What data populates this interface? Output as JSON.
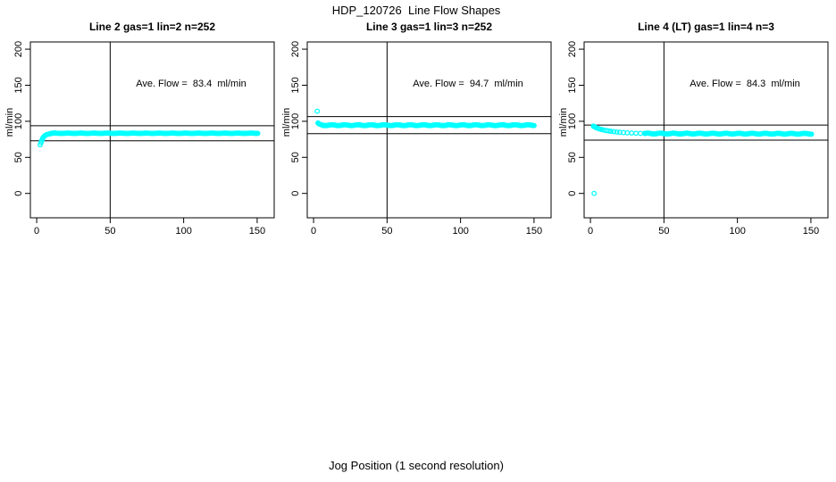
{
  "figure": {
    "title": "HDP_120726  Line Flow Shapes",
    "xlabel": "Jog Position (1 second resolution)",
    "background": "#ffffff"
  },
  "chart_data": {
    "type": "scatter",
    "point_color": "#00ffff",
    "axis_color": "#000000",
    "ylabel": "ml/min",
    "x_ticks": [
      0,
      50,
      100,
      150
    ],
    "y_ticks": [
      0,
      50,
      100,
      150,
      200
    ],
    "xlim": [
      -4.3,
      161.6
    ],
    "ylim": [
      -33.8,
      210
    ],
    "vline_x": 50,
    "grid": false,
    "marker": "open-circle",
    "panels": [
      {
        "title": "Line 2 gas=1 lin=2 n=252",
        "annotation": "Ave. Flow =  83.4  ml/min",
        "ave_flow_ml_min": 83.4,
        "n": 252,
        "hlines": [
          93.8,
          73.0
        ],
        "outlier_points": [
          [
            2.4,
            67.5
          ]
        ],
        "lead_points": [
          [
            3,
            70.5
          ],
          [
            3.4,
            73
          ],
          [
            3.8,
            75
          ],
          [
            4.2,
            76.8
          ],
          [
            4.7,
            78.2
          ],
          [
            5.2,
            79.4
          ],
          [
            5.8,
            80.4
          ],
          [
            6.5,
            81.2
          ],
          [
            7.3,
            81.8
          ],
          [
            8.2,
            82.3
          ],
          [
            9.1,
            82.7
          ],
          [
            10,
            83
          ]
        ],
        "band": {
          "x_from": 10,
          "x_to": 150.5,
          "step": 0.6,
          "y_from": 83.4,
          "y_to": 83.4,
          "jitter": 0.22
        }
      },
      {
        "title": "Line 3 gas=1 lin=3 n=252",
        "annotation": "Ave. Flow =  94.7  ml/min",
        "ave_flow_ml_min": 94.7,
        "n": 252,
        "hlines": [
          106.5,
          82.9
        ],
        "outlier_points": [
          [
            2.5,
            114
          ]
        ],
        "lead_points": [
          [
            3,
            97.8
          ],
          [
            3.5,
            96.7
          ],
          [
            4,
            96.1
          ],
          [
            4.6,
            95.6
          ],
          [
            5.3,
            95.2
          ],
          [
            6,
            94.9
          ]
        ],
        "band": {
          "x_from": 6,
          "x_to": 150.5,
          "step": 0.6,
          "y_from": 94.6,
          "y_to": 94.6,
          "jitter": 0.6
        }
      },
      {
        "title": "Line 4 (LT) gas=1 lin=4 n=3",
        "annotation": "Ave. Flow =  84.3  ml/min",
        "ave_flow_ml_min": 84.3,
        "n": 3,
        "hlines": [
          94.8,
          73.8
        ],
        "outlier_points": [
          [
            2.5,
            0
          ]
        ],
        "lead_points": [
          [
            2,
            93.2
          ],
          [
            2.6,
            92.5
          ],
          [
            3.2,
            91.9
          ],
          [
            3.9,
            91.2
          ],
          [
            4.7,
            90.5
          ],
          [
            5.5,
            89.9
          ],
          [
            6.4,
            89.3
          ],
          [
            7.4,
            88.7
          ],
          [
            8.5,
            88.2
          ],
          [
            9.7,
            87.6
          ],
          [
            11,
            87.1
          ],
          [
            12.5,
            86.6
          ],
          [
            14,
            86.1
          ],
          [
            16,
            85.6
          ],
          [
            18,
            85.1
          ],
          [
            20,
            84.7
          ],
          [
            22.5,
            84.3
          ],
          [
            25,
            84.0
          ],
          [
            28,
            83.7
          ],
          [
            31,
            83.4
          ],
          [
            34,
            83.2
          ],
          [
            37,
            83.1
          ]
        ],
        "band": {
          "x_from": 37,
          "x_to": 150.5,
          "step": 0.6,
          "y_from": 83.0,
          "y_to": 82.7,
          "jitter": 0.55
        }
      }
    ]
  }
}
